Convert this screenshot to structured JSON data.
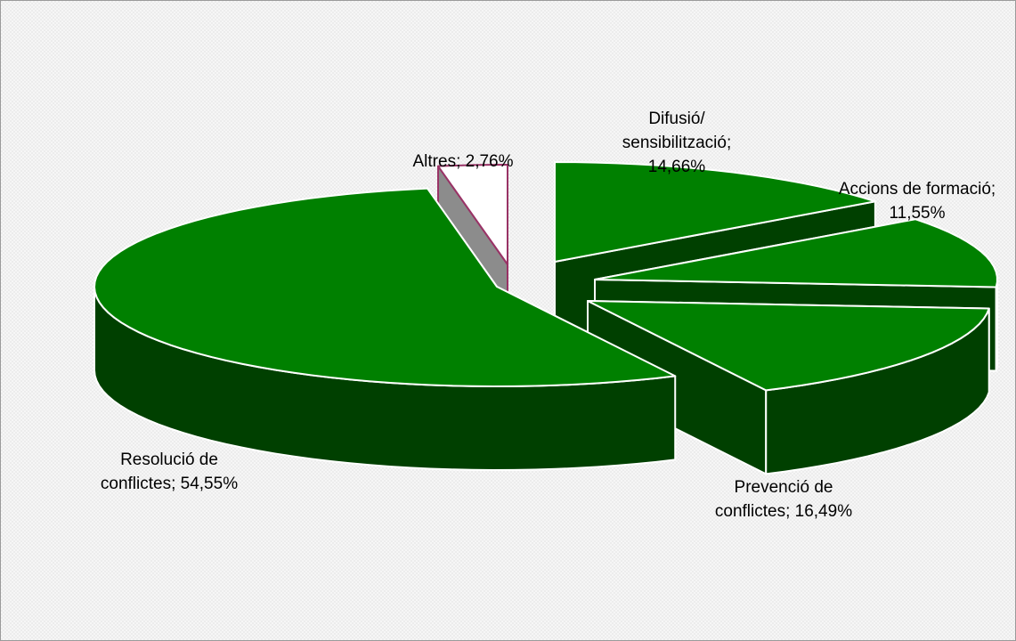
{
  "chart_data": {
    "type": "pie",
    "style": "3d-exploded",
    "title": "",
    "slices": [
      {
        "label_lines": [
          "Difusió/",
          "sensibilització;",
          "14,66%"
        ],
        "label": "Difusió/ sensibilització",
        "value": 14.66,
        "color": "#008000",
        "side_color": "#004000"
      },
      {
        "label_lines": [
          "Accions de formació;",
          "11,55%"
        ],
        "label": "Accions de formació",
        "value": 11.55,
        "color": "#008000",
        "side_color": "#004000"
      },
      {
        "label_lines": [
          "Prevenció de",
          "conflictes; 16,49%"
        ],
        "label": "Prevenció de conflictes",
        "value": 16.49,
        "color": "#008000",
        "side_color": "#004000"
      },
      {
        "label_lines": [
          "Resolució de",
          "conflictes; 54,55%"
        ],
        "label": "Resolució de conflictes",
        "value": 54.55,
        "color": "#008000",
        "side_color": "#004000"
      },
      {
        "label_lines": [
          "Altres; 2,76%"
        ],
        "label": "Altres",
        "value": 2.76,
        "color": "#ffffff",
        "side_color": "#8c8c8c",
        "outline": "#993366"
      }
    ],
    "legend": "none"
  }
}
